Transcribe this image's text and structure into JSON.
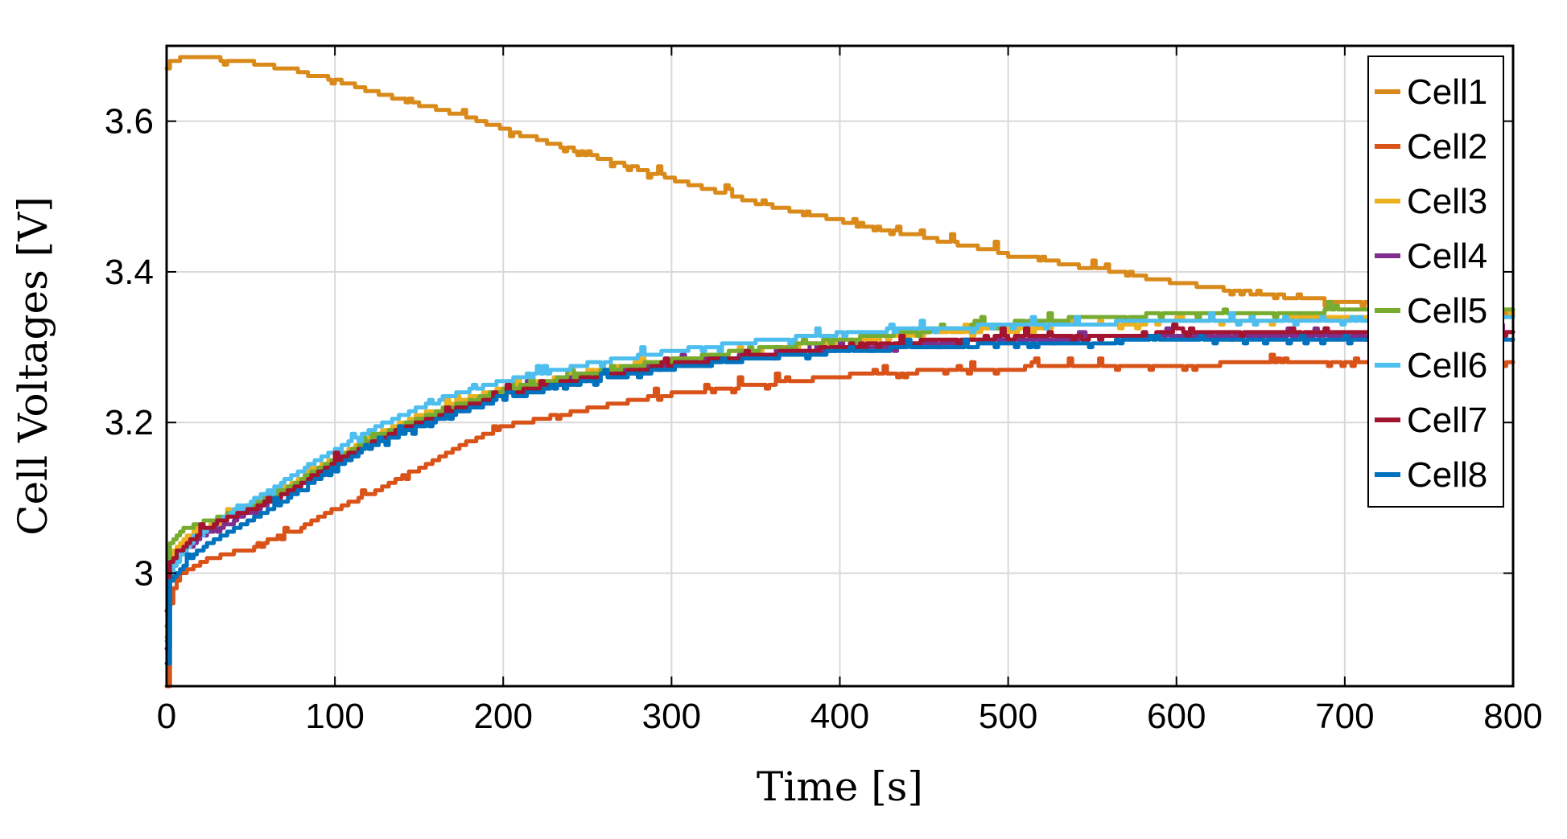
{
  "chart_data": {
    "type": "line",
    "title": "",
    "xlabel": "Time [s]",
    "ylabel": "Cell Voltages [V]",
    "xlim": [
      0,
      800
    ],
    "ylim": [
      2.85,
      3.7
    ],
    "xticks": [
      0,
      100,
      200,
      300,
      400,
      500,
      600,
      700,
      800
    ],
    "xtick_labels": [
      "0",
      "100",
      "200",
      "300",
      "400",
      "500",
      "600",
      "700",
      "800"
    ],
    "yticks": [
      3.0,
      3.2,
      3.4,
      3.6
    ],
    "ytick_labels": [
      "3",
      "3.2",
      "3.4",
      "3.6"
    ],
    "grid": true,
    "legend_position": "top-right",
    "x": [
      0,
      2,
      5,
      10,
      20,
      30,
      50,
      75,
      100,
      125,
      150,
      175,
      200,
      250,
      300,
      350,
      400,
      450,
      500,
      550,
      600,
      650,
      700,
      750,
      800
    ],
    "series": [
      {
        "name": "Cell1",
        "color": "#D98A1A",
        "values": [
          3.675,
          3.68,
          3.682,
          3.683,
          3.684,
          3.683,
          3.678,
          3.668,
          3.655,
          3.637,
          3.622,
          3.608,
          3.59,
          3.556,
          3.523,
          3.492,
          3.468,
          3.446,
          3.424,
          3.404,
          3.386,
          3.37,
          3.36,
          3.352,
          3.345
        ]
      },
      {
        "name": "Cell2",
        "color": "#D95319",
        "values": [
          2.85,
          2.96,
          2.985,
          3.0,
          3.015,
          3.022,
          3.035,
          3.055,
          3.085,
          3.11,
          3.14,
          3.17,
          3.195,
          3.218,
          3.238,
          3.25,
          3.262,
          3.268,
          3.272,
          3.275,
          3.277,
          3.278,
          3.279,
          3.279,
          3.28
        ]
      },
      {
        "name": "Cell3",
        "color": "#EDB120",
        "values": [
          2.92,
          3.02,
          3.035,
          3.045,
          3.058,
          3.068,
          3.088,
          3.12,
          3.155,
          3.185,
          3.21,
          3.23,
          3.245,
          3.268,
          3.283,
          3.297,
          3.308,
          3.318,
          3.325,
          3.33,
          3.334,
          3.337,
          3.339,
          3.34,
          3.341
        ]
      },
      {
        "name": "Cell4",
        "color": "#7E2F8E",
        "values": [
          2.9,
          3.0,
          3.015,
          3.03,
          3.048,
          3.06,
          3.082,
          3.112,
          3.148,
          3.178,
          3.2,
          3.222,
          3.24,
          3.262,
          3.278,
          3.29,
          3.298,
          3.305,
          3.31,
          3.313,
          3.315,
          3.316,
          3.317,
          3.317,
          3.318
        ]
      },
      {
        "name": "Cell5",
        "color": "#77AC30",
        "values": [
          2.93,
          3.04,
          3.05,
          3.058,
          3.066,
          3.074,
          3.09,
          3.118,
          3.152,
          3.182,
          3.205,
          3.226,
          3.243,
          3.266,
          3.283,
          3.297,
          3.31,
          3.322,
          3.332,
          3.34,
          3.344,
          3.346,
          3.348,
          3.349,
          3.35
        ]
      },
      {
        "name": "Cell6",
        "color": "#4DBEEE",
        "values": [
          2.91,
          3.0,
          3.012,
          3.03,
          3.052,
          3.068,
          3.095,
          3.13,
          3.165,
          3.195,
          3.22,
          3.24,
          3.255,
          3.278,
          3.295,
          3.308,
          3.318,
          3.325,
          3.329,
          3.332,
          3.334,
          3.335,
          3.336,
          3.337,
          3.338
        ]
      },
      {
        "name": "Cell7",
        "color": "#A2142F",
        "values": [
          2.95,
          3.015,
          3.022,
          3.035,
          3.055,
          3.068,
          3.085,
          3.112,
          3.148,
          3.178,
          3.2,
          3.22,
          3.237,
          3.26,
          3.277,
          3.29,
          3.3,
          3.308,
          3.313,
          3.316,
          3.318,
          3.319,
          3.32,
          3.32,
          3.321
        ]
      },
      {
        "name": "Cell8",
        "color": "#0072BD",
        "values": [
          2.88,
          2.99,
          3.0,
          3.012,
          3.032,
          3.046,
          3.07,
          3.105,
          3.142,
          3.172,
          3.195,
          3.215,
          3.232,
          3.255,
          3.272,
          3.285,
          3.294,
          3.3,
          3.304,
          3.307,
          3.309,
          3.31,
          3.311,
          3.311,
          3.312
        ]
      }
    ]
  }
}
